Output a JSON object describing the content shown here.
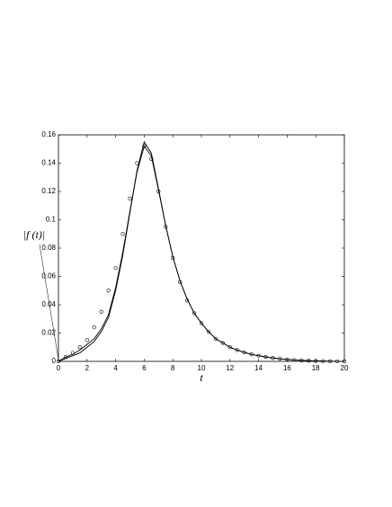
{
  "chart_data": {
    "type": "line",
    "y_label": "|f (t)|",
    "x_label": "t",
    "x": [
      0,
      0.5,
      1,
      1.5,
      2,
      2.5,
      3,
      3.5,
      4,
      4.5,
      5,
      5.5,
      6,
      6.5,
      7,
      7.5,
      8,
      8.5,
      9,
      9.5,
      10,
      10.5,
      11,
      11.5,
      12,
      12.5,
      13,
      13.5,
      14,
      14.5,
      15,
      15.5,
      16,
      16.5,
      17,
      17.5,
      18,
      18.5,
      19,
      19.5,
      20
    ],
    "series": [
      {
        "color": "#000000",
        "marker": "none",
        "values": [
          0,
          0.002,
          0.004,
          0.006,
          0.01,
          0.014,
          0.021,
          0.031,
          0.05,
          0.075,
          0.105,
          0.135,
          0.155,
          0.147,
          0.122,
          0.096,
          0.074,
          0.057,
          0.044,
          0.034,
          0.027,
          0.021,
          0.016,
          0.013,
          0.01,
          0.008,
          0.0063,
          0.005,
          0.004,
          0.0031,
          0.0024,
          0.0018,
          0.0013,
          0.001,
          0.0007,
          0.0005,
          0.0003,
          0.0002,
          0.0001,
          5e-05,
          0
        ]
      },
      {
        "color": "#000000",
        "marker": "none",
        "values": [
          0,
          0.003,
          0.005,
          0.008,
          0.012,
          0.016,
          0.023,
          0.033,
          0.052,
          0.077,
          0.106,
          0.134,
          0.152,
          0.145,
          0.121,
          0.096,
          0.074,
          0.057,
          0.044,
          0.034,
          0.027,
          0.021,
          0.016,
          0.013,
          0.01,
          0.008,
          0.0063,
          0.005,
          0.004,
          0.0031,
          0.0024,
          0.0018,
          0.0013,
          0.001,
          0.0007,
          0.0005,
          0.0003,
          0.0002,
          0.0001,
          5e-05,
          0
        ]
      },
      {
        "color": "#000000",
        "marker": "o",
        "values": [
          0,
          0.003,
          0.006,
          0.01,
          0.015,
          0.024,
          0.035,
          0.05,
          0.066,
          0.09,
          0.115,
          0.14,
          0.152,
          0.143,
          0.12,
          0.095,
          0.073,
          0.056,
          0.043,
          0.034,
          0.027,
          0.021,
          0.016,
          0.013,
          0.01,
          0.008,
          0.0063,
          0.005,
          0.004,
          0.0031,
          0.0024,
          0.0018,
          0.0013,
          0.001,
          0.0007,
          0.0005,
          0.0003,
          0.0002,
          0.0001,
          5e-05,
          0
        ]
      }
    ],
    "xlim": [
      0,
      20
    ],
    "ylim": [
      0,
      0.16
    ],
    "xticks": [
      0,
      2,
      4,
      6,
      8,
      10,
      12,
      14,
      16,
      18,
      20
    ],
    "yticks": [
      0,
      0.02,
      0.04,
      0.06,
      0.08,
      0.1,
      0.12,
      0.14,
      0.16
    ],
    "grid": false
  }
}
